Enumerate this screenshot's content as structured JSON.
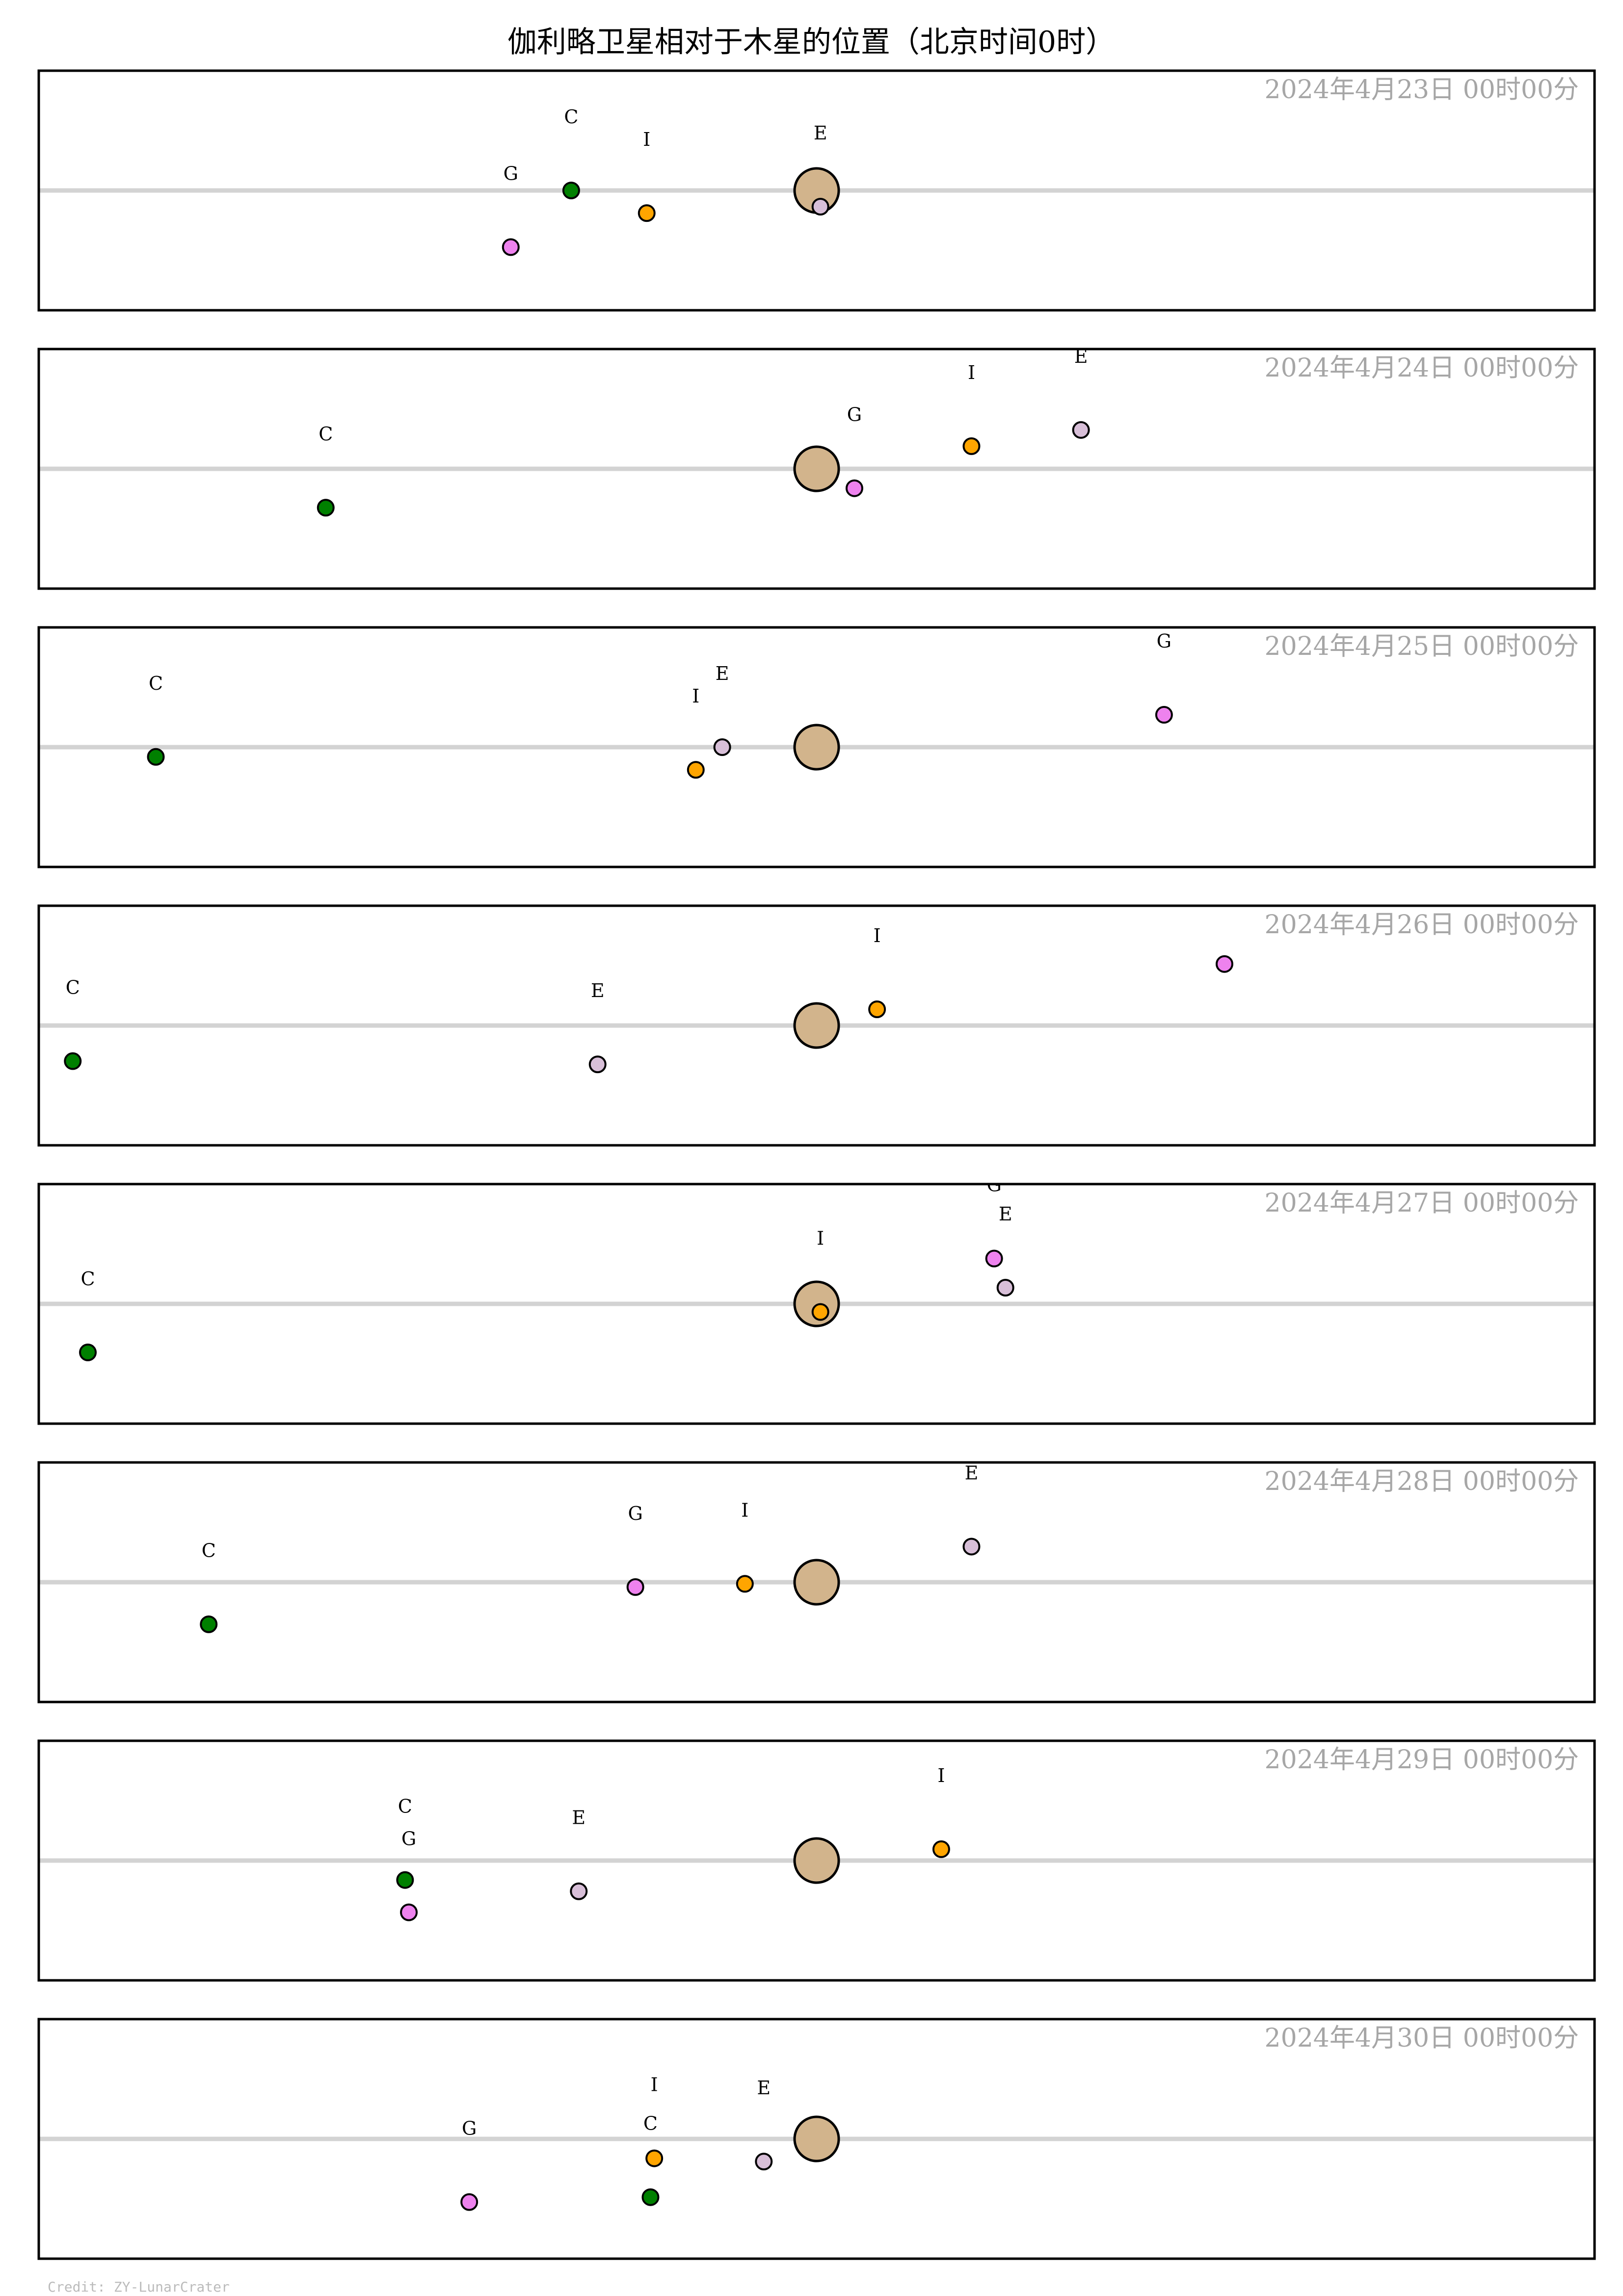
{
  "title": "伽利略卫星相对于木星的位置（北京时间0时）",
  "credit": "Credit: ZY-LunarCrater",
  "colors": {
    "background": "#ffffff",
    "frame": "#000000",
    "equator_line": "#d3d3d3",
    "jupiter": "#d2b48c",
    "date_text": "#a6a6a6",
    "I": "#ffa500",
    "E": "#d8bfd8",
    "G": "#ee82ee",
    "C": "#008000"
  },
  "chart_data": {
    "type": "scatter",
    "x_range": [
      -20.6,
      20.6
    ],
    "y_range": [
      -3.7,
      3.7
    ],
    "y_axis": "down-positive",
    "center_object": "Jupiter",
    "moons": [
      "I",
      "E",
      "G",
      "C"
    ],
    "panels": [
      {
        "date": "2024年4月23日  00时00分",
        "moons": [
          {
            "name": "I",
            "x": -4.5,
            "y": 0.7
          },
          {
            "name": "E",
            "x": 0.1,
            "y": 0.5
          },
          {
            "name": "G",
            "x": -8.1,
            "y": 1.75
          },
          {
            "name": "C",
            "x": -6.5,
            "y": 0.0
          }
        ]
      },
      {
        "date": "2024年4月24日  00时00分",
        "moons": [
          {
            "name": "I",
            "x": 4.1,
            "y": -0.7
          },
          {
            "name": "E",
            "x": 7.0,
            "y": -1.2
          },
          {
            "name": "G",
            "x": 1.0,
            "y": 0.6
          },
          {
            "name": "C",
            "x": -13.0,
            "y": 1.2
          }
        ]
      },
      {
        "date": "2024年4月25日  00时00分",
        "moons": [
          {
            "name": "I",
            "x": -3.2,
            "y": 0.7
          },
          {
            "name": "E",
            "x": -2.5,
            "y": 0.0
          },
          {
            "name": "G",
            "x": 9.2,
            "y": -1.0
          },
          {
            "name": "C",
            "x": -17.5,
            "y": 0.3
          }
        ]
      },
      {
        "date": "2024年4月26日  00时00分",
        "moons": [
          {
            "name": "I",
            "x": 1.6,
            "y": -0.5
          },
          {
            "name": "E",
            "x": -5.8,
            "y": 1.2
          },
          {
            "name": "G",
            "x": 10.8,
            "y": -1.9
          },
          {
            "name": "C",
            "x": -19.7,
            "y": 1.1
          }
        ]
      },
      {
        "date": "2024年4月27日  00时00分",
        "moons": [
          {
            "name": "I",
            "x": 0.1,
            "y": 0.25
          },
          {
            "name": "E",
            "x": 5.0,
            "y": -0.5
          },
          {
            "name": "G",
            "x": 4.7,
            "y": -1.4
          },
          {
            "name": "C",
            "x": -19.3,
            "y": 1.5
          }
        ]
      },
      {
        "date": "2024年4月28日  00时00分",
        "moons": [
          {
            "name": "I",
            "x": -1.9,
            "y": 0.05
          },
          {
            "name": "E",
            "x": 4.1,
            "y": -1.1
          },
          {
            "name": "G",
            "x": -4.8,
            "y": 0.15
          },
          {
            "name": "C",
            "x": -16.1,
            "y": 1.3
          }
        ]
      },
      {
        "date": "2024年4月29日  00时00分",
        "moons": [
          {
            "name": "I",
            "x": 3.3,
            "y": -0.35
          },
          {
            "name": "E",
            "x": -6.3,
            "y": 0.95
          },
          {
            "name": "G",
            "x": -10.8,
            "y": 1.6
          },
          {
            "name": "C",
            "x": -10.9,
            "y": 0.6
          }
        ]
      },
      {
        "date": "2024年4月30日  00时00分",
        "moons": [
          {
            "name": "I",
            "x": -4.3,
            "y": 0.6
          },
          {
            "name": "E",
            "x": -1.4,
            "y": 0.7
          },
          {
            "name": "G",
            "x": -9.2,
            "y": 1.95
          },
          {
            "name": "C",
            "x": -4.4,
            "y": 1.8
          }
        ]
      }
    ]
  }
}
